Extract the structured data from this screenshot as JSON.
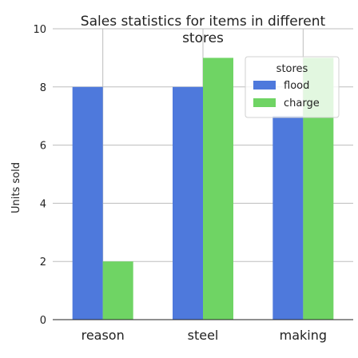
{
  "chart_data": {
    "type": "bar",
    "title": "Sales statistics for items in different stores",
    "title_lines": [
      "Sales statistics for items in different",
      "stores"
    ],
    "xlabel": "",
    "ylabel": "Units sold",
    "categories": [
      "reason",
      "steel",
      "making"
    ],
    "series": [
      {
        "name": "flood",
        "values": [
          8,
          8,
          7
        ],
        "color": "#4e79dc"
      },
      {
        "name": "charge",
        "values": [
          2,
          9,
          9
        ],
        "color": "#6fd464"
      }
    ],
    "ylim": [
      0,
      10
    ],
    "yticks": [
      0,
      2,
      4,
      6,
      8,
      10
    ],
    "grid": true,
    "legend": {
      "title": "stores",
      "placement": "top-right"
    }
  }
}
